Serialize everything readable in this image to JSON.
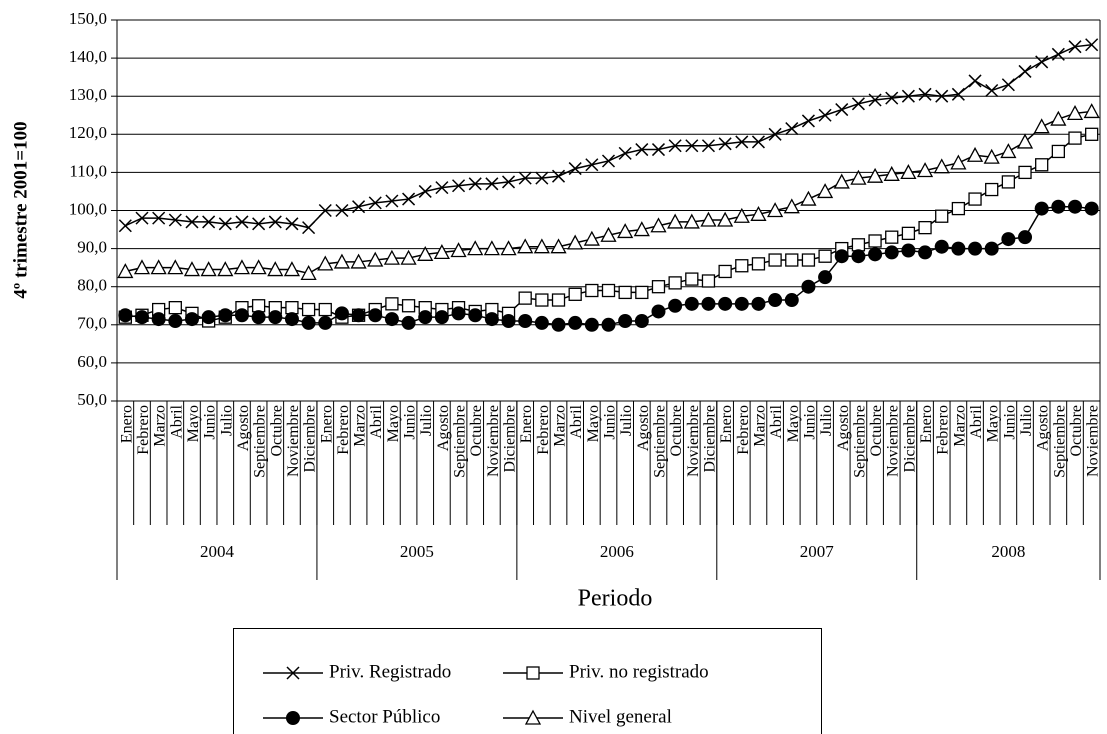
{
  "chart_data": {
    "type": "line",
    "y_axis_label": "4º trimestre 2001=100",
    "x_axis_label": "Periodo",
    "groups": [
      {
        "label": "2004",
        "categories": [
          "Enero",
          "Febrero",
          "Marzo",
          "Abril",
          "Mayo",
          "Junio",
          "Julio",
          "Agosto",
          "Septiembre",
          "Octubre",
          "Noviembre",
          "Diciembre"
        ]
      },
      {
        "label": "2005",
        "categories": [
          "Enero",
          "Febrero",
          "Marzo",
          "Abril",
          "Mayo",
          "Junio",
          "Julio",
          "Agosto",
          "Septiembre",
          "Octubre",
          "Noviembre",
          "Diciembre"
        ]
      },
      {
        "label": "2006",
        "categories": [
          "Enero",
          "Febrero",
          "Marzo",
          "Abril",
          "Mayo",
          "Junio",
          "Julio",
          "Agosto",
          "Septiembre",
          "Octubre",
          "Noviembre",
          "Diciembre"
        ]
      },
      {
        "label": "2007",
        "categories": [
          "Enero",
          "Febrero",
          "Marzo",
          "Abril",
          "Mayo",
          "Junio",
          "Julio",
          "Agosto",
          "Septiembre",
          "Octubre",
          "Noviembre",
          "Diciembre"
        ]
      },
      {
        "label": "2008",
        "categories": [
          "Enero",
          "Febrero",
          "Marzo",
          "Abril",
          "Mayo",
          "Junio",
          "Julio",
          "Agosto",
          "Septiembre",
          "Octubre",
          "Noviembre"
        ]
      }
    ],
    "series": [
      {
        "name": "Priv. Registrado",
        "color": "#000000",
        "marker": "x",
        "values": [
          96,
          98,
          98,
          97.5,
          97,
          97,
          96.5,
          97,
          96.5,
          97,
          96.5,
          95.5,
          100,
          100,
          101,
          102,
          102.5,
          103,
          105,
          106,
          106.5,
          107,
          107,
          107.5,
          108.5,
          108.5,
          109,
          111,
          112,
          113,
          115,
          116,
          116,
          117,
          117,
          117,
          117.5,
          118,
          118,
          120,
          121.5,
          123.5,
          125,
          126.5,
          128,
          129,
          129.5,
          130,
          130.5,
          130,
          130.5,
          134,
          131.5,
          133,
          136.5,
          139,
          141,
          143,
          143.5
        ]
      },
      {
        "name": "Priv. no registrado",
        "color": "#000000",
        "marker": "square",
        "values": [
          72,
          72.5,
          74,
          74.5,
          73,
          71,
          72,
          74.5,
          75,
          74.5,
          74.5,
          74,
          74,
          72,
          72.5,
          74,
          75.5,
          75,
          74.5,
          74,
          74.5,
          73.5,
          74,
          73,
          77,
          76.5,
          76.5,
          78,
          79,
          79,
          78.5,
          78.5,
          80,
          81,
          82,
          81.5,
          84,
          85.5,
          86,
          87,
          87,
          87,
          88,
          90,
          91,
          92,
          93,
          94,
          95.5,
          98.5,
          100.5,
          103,
          105.5,
          107.5,
          110,
          112,
          115.5,
          119,
          120
        ]
      },
      {
        "name": "Sector Público",
        "color": "#000000",
        "marker": "circle",
        "values": [
          72.5,
          72,
          71.5,
          71,
          71.5,
          72,
          72.5,
          72.5,
          72,
          72,
          71.5,
          70.5,
          70.5,
          73,
          72.5,
          72.5,
          71.5,
          70.5,
          72,
          72,
          73,
          72.5,
          71.5,
          71,
          71,
          70.5,
          70,
          70.5,
          70,
          70,
          71,
          71,
          73.5,
          75,
          75.5,
          75.5,
          75.5,
          75.5,
          75.5,
          76.5,
          76.5,
          80,
          82.5,
          88,
          88,
          88.5,
          89,
          89.5,
          89,
          90.5,
          90,
          90,
          90,
          92.5,
          93,
          100.5,
          101,
          101,
          100.5
        ]
      },
      {
        "name": "Nivel general",
        "color": "#000000",
        "marker": "triangle",
        "values": [
          84,
          85,
          85,
          85,
          84.5,
          84.5,
          84.5,
          85,
          85,
          84.5,
          84.5,
          83.5,
          86,
          86.5,
          86.5,
          87,
          87.5,
          87.5,
          88.5,
          89,
          89.5,
          90,
          90,
          90,
          90.5,
          90.5,
          90.5,
          91.5,
          92.5,
          93.5,
          94.5,
          95,
          96,
          97,
          97,
          97.5,
          97.5,
          98.5,
          99,
          100,
          101,
          103,
          105,
          107.5,
          108.5,
          109,
          109.5,
          110,
          110.5,
          111.5,
          112.5,
          114.5,
          114,
          115.5,
          118,
          122,
          124,
          125.5,
          126
        ]
      }
    ],
    "ylim": [
      50,
      150
    ],
    "yticks": [
      {
        "value": 50,
        "label": "50,0"
      },
      {
        "value": 60,
        "label": "60,0"
      },
      {
        "value": 70,
        "label": "70,0"
      },
      {
        "value": 80,
        "label": "80,0"
      },
      {
        "value": 90,
        "label": "90,0"
      },
      {
        "value": 100,
        "label": "100,0"
      },
      {
        "value": 110,
        "label": "110,0"
      },
      {
        "value": 120,
        "label": "120,0"
      },
      {
        "value": 130,
        "label": "130,0"
      },
      {
        "value": 140,
        "label": "140,0"
      },
      {
        "value": 150,
        "label": "150,0"
      }
    ],
    "grid": true,
    "legend": "bottom"
  }
}
